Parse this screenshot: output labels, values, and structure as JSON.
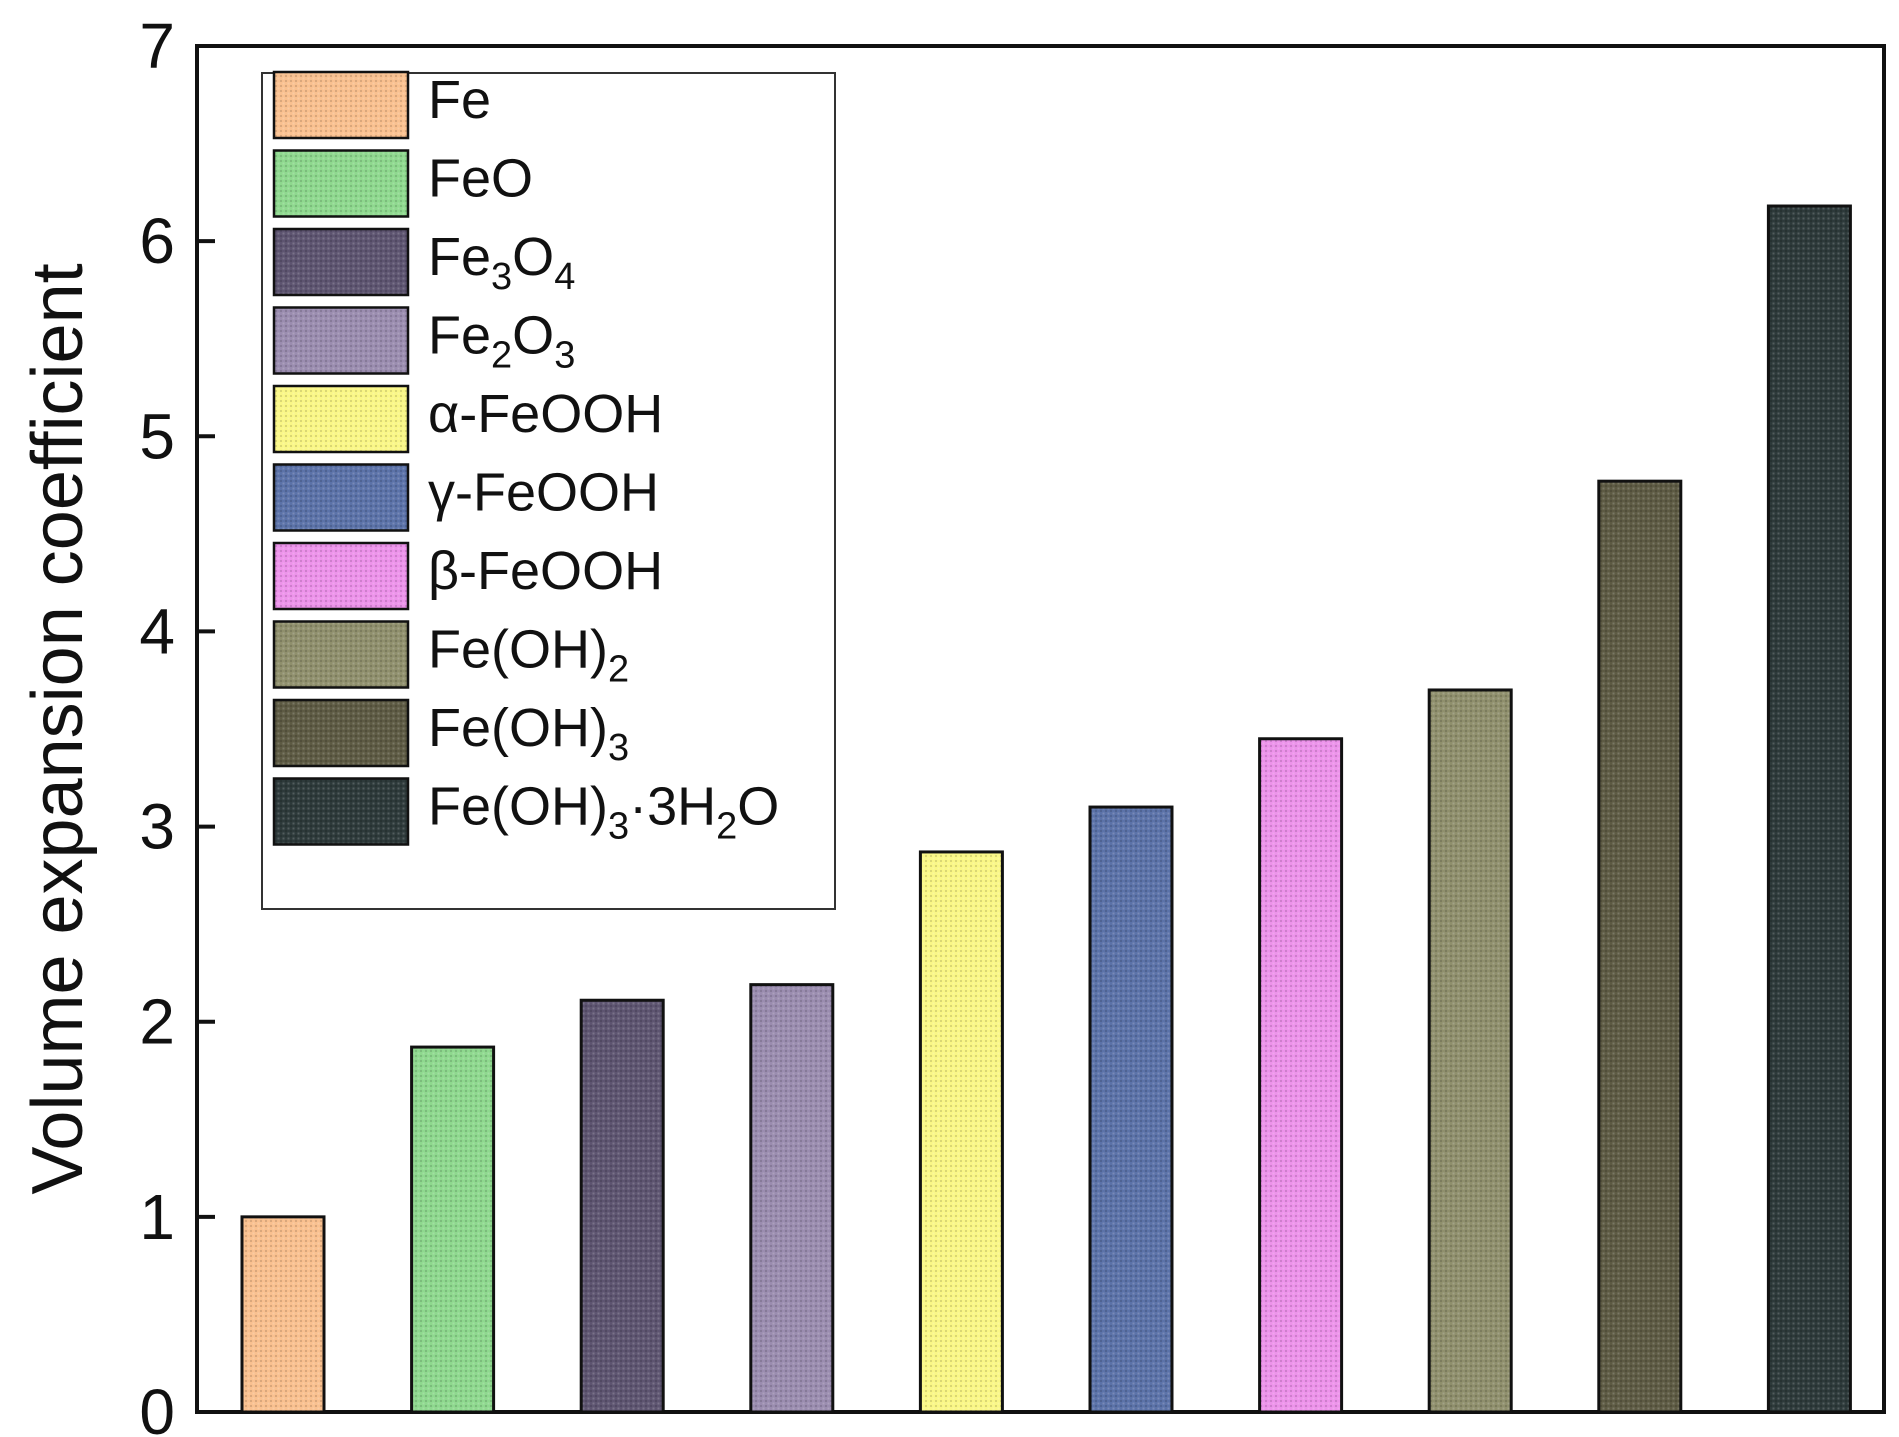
{
  "chart_data": {
    "type": "bar",
    "title": "",
    "xlabel": "",
    "ylabel": "Volume expansion coefficient",
    "ylim": [
      0,
      7
    ],
    "yticks": [
      "0",
      "1",
      "2",
      "3",
      "4",
      "5",
      "6",
      "7"
    ],
    "grid": false,
    "legend_position": "top-left",
    "categories": [
      "Fe",
      "FeO",
      "Fe3O4",
      "Fe2O3",
      "α-FeOOH",
      "γ-FeOOH",
      "β-FeOOH",
      "Fe(OH)2",
      "Fe(OH)3",
      "Fe(OH)3·3H2O"
    ],
    "values": [
      1.0,
      1.87,
      2.11,
      2.19,
      2.87,
      3.1,
      3.45,
      3.7,
      4.77,
      6.18
    ],
    "colors": [
      "#F9C08F",
      "#8ED88E",
      "#5D5470",
      "#9A8CAF",
      "#FAF786",
      "#5B72A8",
      "#EC92EA",
      "#8F8F6C",
      "#5D5A43",
      "#2D393A"
    ],
    "legend": [
      {
        "parts": [
          {
            "t": "Fe",
            "sub": false
          }
        ]
      },
      {
        "parts": [
          {
            "t": "FeO",
            "sub": false
          }
        ]
      },
      {
        "parts": [
          {
            "t": "Fe",
            "sub": false
          },
          {
            "t": "3",
            "sub": true
          },
          {
            "t": "O",
            "sub": false
          },
          {
            "t": "4",
            "sub": true
          }
        ]
      },
      {
        "parts": [
          {
            "t": "Fe",
            "sub": false
          },
          {
            "t": "2",
            "sub": true
          },
          {
            "t": "O",
            "sub": false
          },
          {
            "t": "3",
            "sub": true
          }
        ]
      },
      {
        "parts": [
          {
            "t": "α-FeOOH",
            "sub": false
          }
        ]
      },
      {
        "parts": [
          {
            "t": "γ-FeOOH",
            "sub": false
          }
        ]
      },
      {
        "parts": [
          {
            "t": "β-FeOOH",
            "sub": false
          }
        ]
      },
      {
        "parts": [
          {
            "t": "Fe(OH)",
            "sub": false
          },
          {
            "t": "2",
            "sub": true
          }
        ]
      },
      {
        "parts": [
          {
            "t": "Fe(OH)",
            "sub": false
          },
          {
            "t": "3",
            "sub": true
          }
        ]
      },
      {
        "parts": [
          {
            "t": "Fe(OH)",
            "sub": false
          },
          {
            "t": "3",
            "sub": true
          },
          {
            "t": "·3H",
            "sub": false
          },
          {
            "t": "2",
            "sub": true
          },
          {
            "t": "O",
            "sub": false
          }
        ]
      }
    ]
  }
}
